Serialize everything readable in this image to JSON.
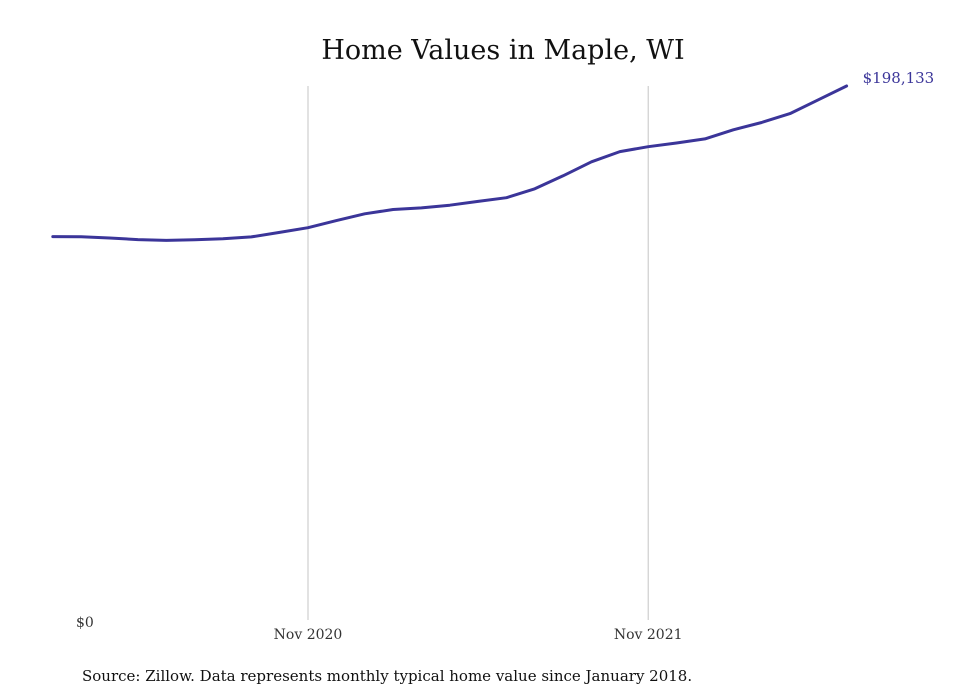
{
  "chart_data": {
    "type": "line",
    "title": "Home Values in Maple, WI",
    "xlabel": "",
    "ylabel": "",
    "x_ticks": [
      "Nov 2020",
      "Nov 2021"
    ],
    "y_ticks": [
      "$0"
    ],
    "ylim": [
      0,
      198133
    ],
    "grid": "vertical lines at x ticks",
    "series": [
      {
        "color": "#3b3599",
        "x": [
          "2020-02",
          "2020-03",
          "2020-04",
          "2020-05",
          "2020-06",
          "2020-07",
          "2020-08",
          "2020-09",
          "2020-10",
          "2020-11",
          "2020-12",
          "2021-01",
          "2021-02",
          "2021-03",
          "2021-04",
          "2021-05",
          "2021-06",
          "2021-07",
          "2021-08",
          "2021-09",
          "2021-10",
          "2021-11",
          "2021-12",
          "2022-01",
          "2022-02",
          "2022-03",
          "2022-04",
          "2022-05",
          "2022-06"
        ],
        "values": [
          142270,
          142230,
          141750,
          141150,
          140850,
          141050,
          141450,
          142150,
          143800,
          145550,
          148200,
          150700,
          152300,
          152900,
          153900,
          155300,
          156700,
          160000,
          164800,
          170000,
          173800,
          175600,
          177000,
          178500,
          181900,
          184600,
          187900,
          193000,
          198133
        ]
      }
    ],
    "end_label": "$198,133"
  },
  "source_text": "Source: Zillow. Data represents monthly typical home value since January 2018."
}
